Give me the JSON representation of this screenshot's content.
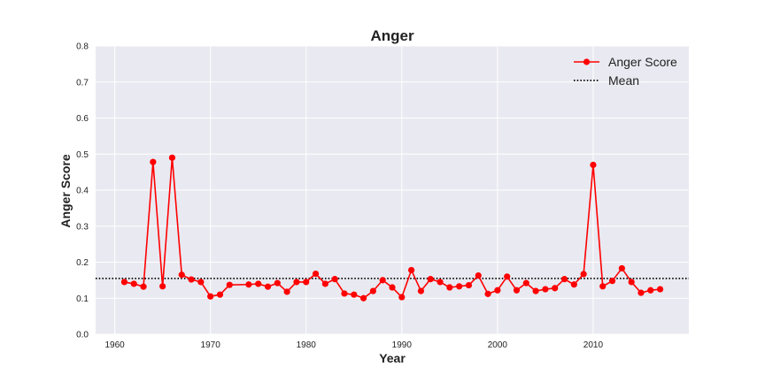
{
  "chart_data": {
    "type": "line",
    "title": "Anger",
    "xlabel": "Year",
    "ylabel": "Anger Score",
    "xlim": [
      1958,
      2020
    ],
    "ylim": [
      0.0,
      0.8
    ],
    "xticks": [
      1960,
      1970,
      1980,
      1990,
      2000,
      2010
    ],
    "yticks": [
      0.0,
      0.1,
      0.2,
      0.3,
      0.4,
      0.5,
      0.6,
      0.7,
      0.8
    ],
    "xtick_labels": [
      "1960",
      "1970",
      "1980",
      "1990",
      "2000",
      "2010"
    ],
    "ytick_labels": [
      "0.0",
      "0.1",
      "0.2",
      "0.3",
      "0.4",
      "0.5",
      "0.6",
      "0.7",
      "0.8"
    ],
    "grid": true,
    "legend_position": "top-right",
    "series": [
      {
        "name": "Anger Score",
        "color": "#ff0000",
        "marker": "circle",
        "x": [
          1961,
          1962,
          1963,
          1964,
          1965,
          1966,
          1967,
          1968,
          1969,
          1970,
          1971,
          1972,
          1974,
          1975,
          1976,
          1977,
          1978,
          1979,
          1980,
          1981,
          1982,
          1983,
          1984,
          1985,
          1986,
          1987,
          1988,
          1989,
          1990,
          1991,
          1992,
          1993,
          1994,
          1995,
          1996,
          1997,
          1998,
          1999,
          2000,
          2001,
          2002,
          2003,
          2004,
          2005,
          2006,
          2007,
          2008,
          2009,
          2010,
          2011,
          2012,
          2013,
          2014,
          2015,
          2016,
          2017
        ],
        "y": [
          0.145,
          0.14,
          0.132,
          0.478,
          0.133,
          0.49,
          0.165,
          0.152,
          0.145,
          0.105,
          0.11,
          0.137,
          0.138,
          0.14,
          0.132,
          0.142,
          0.118,
          0.145,
          0.145,
          0.168,
          0.14,
          0.153,
          0.113,
          0.11,
          0.1,
          0.12,
          0.15,
          0.13,
          0.103,
          0.178,
          0.12,
          0.153,
          0.145,
          0.13,
          0.133,
          0.136,
          0.163,
          0.112,
          0.122,
          0.16,
          0.122,
          0.142,
          0.12,
          0.125,
          0.128,
          0.153,
          0.138,
          0.167,
          0.47,
          0.133,
          0.148,
          0.183,
          0.145,
          0.115,
          0.122,
          0.125
        ]
      },
      {
        "name": "Mean",
        "color": "#000000",
        "style": "dotted",
        "y_constant": 0.155
      }
    ]
  }
}
